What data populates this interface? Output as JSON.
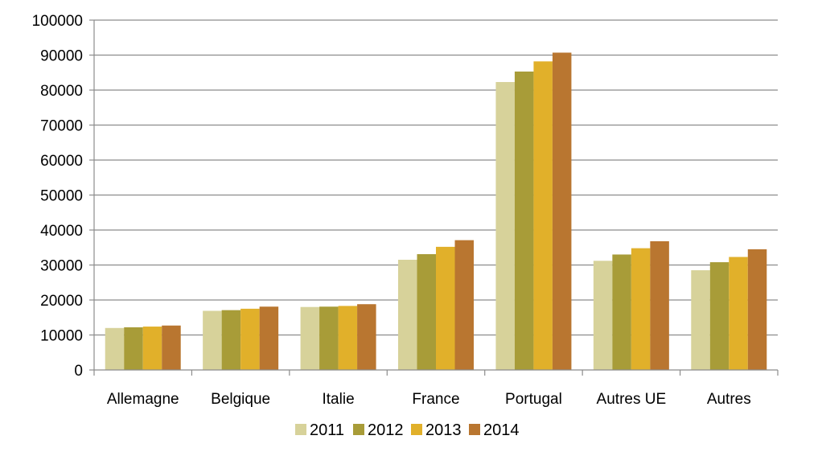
{
  "chart_data": {
    "type": "bar",
    "title": "",
    "xlabel": "",
    "ylabel": "",
    "ylim": [
      0,
      100000
    ],
    "ytick_step": 10000,
    "yticks": [
      "0",
      "10000",
      "20000",
      "30000",
      "40000",
      "50000",
      "60000",
      "70000",
      "80000",
      "90000",
      "100000"
    ],
    "grid": true,
    "legend_position": "bottom",
    "categories": [
      "Allemagne",
      "Belgique",
      "Italie",
      "France",
      "Portugal",
      "Autres UE",
      "Autres"
    ],
    "series": [
      {
        "name": "2011",
        "color": "#d7d29a",
        "values": [
          12000,
          16900,
          18000,
          31500,
          82300,
          31200,
          28500
        ]
      },
      {
        "name": "2012",
        "color": "#a89c38",
        "values": [
          12200,
          17100,
          18100,
          33100,
          85300,
          33000,
          30800
        ]
      },
      {
        "name": "2013",
        "color": "#e1b02a",
        "values": [
          12400,
          17500,
          18300,
          35200,
          88200,
          34800,
          32300
        ]
      },
      {
        "name": "2014",
        "color": "#b97630",
        "values": [
          12700,
          18100,
          18800,
          37100,
          90700,
          36800,
          34500
        ]
      }
    ]
  }
}
